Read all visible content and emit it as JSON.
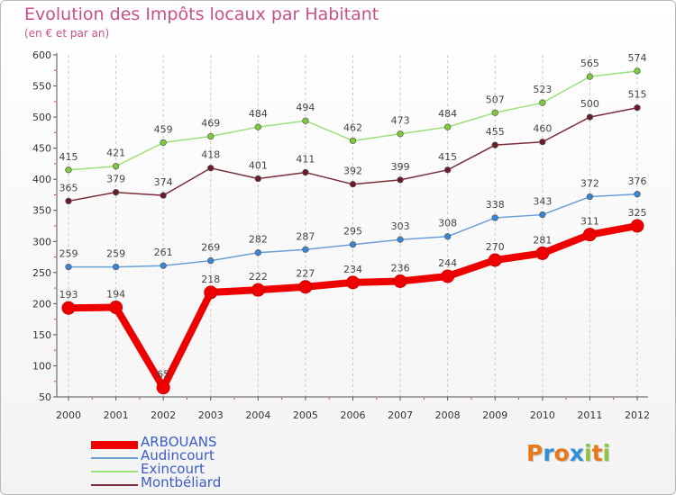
{
  "title": "Evolution des Impôts locaux par Habitant",
  "subtitle": "(en € et par an)",
  "logo": {
    "letters": [
      "P",
      "r",
      "o",
      "x",
      "i",
      "t",
      "i"
    ],
    "colors": [
      "#e9781a",
      "#2f8fd8",
      "#e9781a",
      "#2f8fd8",
      "#8cc63f",
      "#e9781a",
      "#8cc63f"
    ]
  },
  "chart_data": {
    "type": "line",
    "title": "Evolution des Impôts locaux par Habitant",
    "subtitle": "(en € et par an)",
    "xlabel": "",
    "ylabel": "",
    "ylim": [
      50,
      600
    ],
    "yticks": [
      50,
      100,
      150,
      200,
      250,
      300,
      350,
      400,
      450,
      500,
      550,
      600
    ],
    "grid": "vertical dashed",
    "legend_position": "bottom-left",
    "categories": [
      "2000",
      "2001",
      "2002",
      "2003",
      "2004",
      "2005",
      "2006",
      "2007",
      "2008",
      "2009",
      "2010",
      "2011",
      "2012"
    ],
    "series": [
      {
        "name": "ARBOUANS",
        "color": "#ee0000",
        "marker": "#ee0000",
        "bold": true,
        "values": [
          193,
          194,
          65,
          218,
          222,
          227,
          234,
          236,
          244,
          270,
          281,
          311,
          325
        ]
      },
      {
        "name": "Audincourt",
        "color": "#6a9fd4",
        "marker": "#3a86d6",
        "bold": false,
        "values": [
          259,
          259,
          261,
          269,
          282,
          287,
          295,
          303,
          308,
          338,
          343,
          372,
          376
        ]
      },
      {
        "name": "Exincourt",
        "color": "#9ee07a",
        "marker": "#7fcc3a",
        "bold": false,
        "values": [
          415,
          421,
          459,
          469,
          484,
          494,
          462,
          473,
          484,
          507,
          523,
          565,
          574
        ]
      },
      {
        "name": "Montbéliard",
        "color": "#7a2e3a",
        "marker": "#6a1a2a",
        "bold": false,
        "values": [
          365,
          379,
          374,
          418,
          401,
          411,
          392,
          399,
          415,
          455,
          460,
          500,
          515
        ]
      }
    ]
  }
}
